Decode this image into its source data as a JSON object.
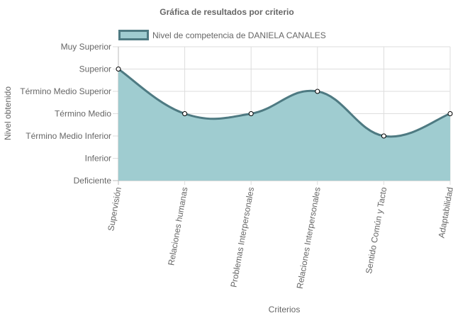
{
  "chart_data": {
    "type": "area",
    "title": "Gráfica de resultados por criterio",
    "xlabel": "Criterios",
    "ylabel": "Nivel obtenido",
    "categories": [
      "Supervisión",
      "Relaciones humanas",
      "Problemas Interpersonales",
      "Relaciones Interpersonales",
      "Sentido Común y Tacto",
      "Adaptabilidad"
    ],
    "y_levels": [
      "Deficiente",
      "Inferior",
      "Término Medio Inferior",
      "Término Medio",
      "Término Medio Superior",
      "Superior",
      "Muy Superior"
    ],
    "ylim": [
      0,
      6
    ],
    "series": [
      {
        "name": "Nivel de competencia de DANIELA CANALES",
        "values": [
          5,
          3,
          3,
          4,
          2,
          3
        ]
      }
    ],
    "legend_position": "top",
    "grid": true,
    "colors": {
      "fill": "#9fccd0",
      "line": "#4e7a82",
      "grid": "#dddddd",
      "point_fill": "#ffffff"
    }
  }
}
